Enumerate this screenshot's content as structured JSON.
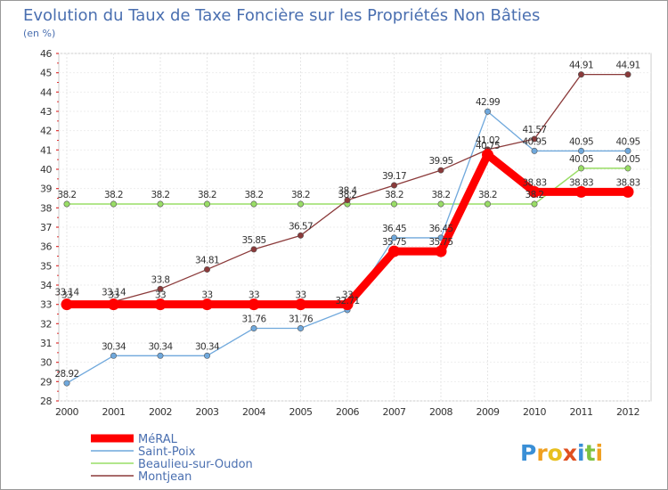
{
  "chart_data": {
    "type": "line",
    "title": "Evolution du Taux de Taxe Foncière sur les Propriétés Non Bâties",
    "ylabel": "(en %)",
    "xlabel": "",
    "x": [
      "2000",
      "2001",
      "2002",
      "2003",
      "2004",
      "2005",
      "2006",
      "2007",
      "2008",
      "2009",
      "2010",
      "2011",
      "2012"
    ],
    "yticks": [
      "28",
      "29",
      "30",
      "31",
      "32",
      "33",
      "34",
      "35",
      "36",
      "37",
      "38",
      "39",
      "40",
      "41",
      "42",
      "43",
      "44",
      "45",
      "46"
    ],
    "ylim": [
      28,
      46
    ],
    "series": [
      {
        "name": "MéRAL",
        "color": "#ff0000",
        "values": [
          33,
          33,
          33,
          33,
          33,
          33,
          33,
          35.75,
          35.75,
          40.75,
          38.83,
          38.83,
          38.83
        ],
        "labels": [
          "33",
          "33",
          "33",
          "33",
          "33",
          "33",
          "33",
          "35.75",
          "35.75",
          "40.75",
          "38.83",
          "38.83",
          "38.83"
        ]
      },
      {
        "name": "Saint-Poix",
        "color": "#6fa8dc",
        "values": [
          28.92,
          30.34,
          30.34,
          30.34,
          31.76,
          31.76,
          32.71,
          36.45,
          36.45,
          42.99,
          40.95,
          40.95,
          40.95
        ],
        "labels": [
          "28.92",
          "30.34",
          "30.34",
          "30.34",
          "31.76",
          "31.76",
          "32.71",
          "36.45",
          "36.45",
          "42.99",
          "40.95",
          "40.95",
          "40.95"
        ]
      },
      {
        "name": "Beaulieu-sur-Oudon",
        "color": "#99dd66",
        "values": [
          38.2,
          38.2,
          38.2,
          38.2,
          38.2,
          38.2,
          38.2,
          38.2,
          38.2,
          38.2,
          38.2,
          40.05,
          40.05
        ],
        "labels": [
          "38.2",
          "38.2",
          "38.2",
          "38.2",
          "38.2",
          "38.2",
          "38.2",
          "38.2",
          "38.2",
          "38.2",
          "38.2",
          "40.05",
          "40.05"
        ]
      },
      {
        "name": "Montjean",
        "color": "#8b3a3a",
        "values": [
          33.14,
          33.14,
          33.8,
          34.81,
          35.85,
          36.57,
          38.4,
          39.17,
          39.95,
          41.02,
          41.57,
          44.91,
          44.91
        ],
        "labels": [
          "33.14",
          "33.14",
          "33.8",
          "34.81",
          "35.85",
          "36.57",
          "38.4",
          "39.17",
          "39.95",
          "41.02",
          "41.57",
          "44.91",
          "44.91"
        ]
      }
    ],
    "legend": "bottom-left"
  },
  "logo": {
    "letters": [
      "P",
      "r",
      "o",
      "x",
      "i",
      "t",
      "i"
    ],
    "colors": [
      "#3a8fd6",
      "#f0a020",
      "#e8c020",
      "#e05020",
      "#3a8fd6",
      "#7dc242",
      "#f0a020"
    ]
  }
}
